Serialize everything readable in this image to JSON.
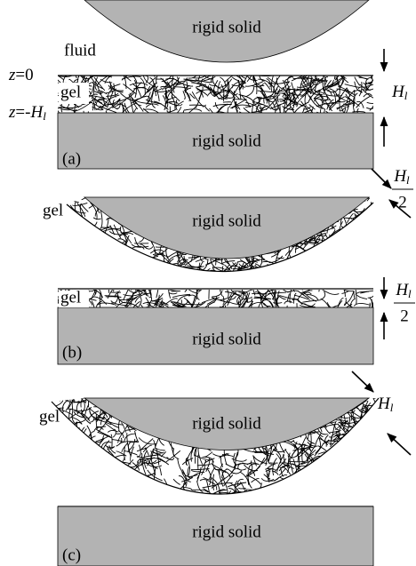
{
  "panel_a": {
    "top_solid": "rigid solid",
    "fluid": "fluid",
    "z_top": {
      "var": "z",
      "rest": "=0"
    },
    "z_bottom": {
      "var": "z",
      "op": "=-",
      "H": "H",
      "sub": "l"
    },
    "gel": "gel",
    "thickness": {
      "main": "H",
      "sub": "l"
    },
    "bottom_solid": "rigid solid",
    "label": "(a)"
  },
  "panel_b": {
    "curved_solid": "rigid solid",
    "curved_gel": "gel",
    "curved_thickness": {
      "main": "H",
      "sub": "l",
      "denominator": "2"
    },
    "flat_gel": "gel",
    "flat_thickness": {
      "main": "H",
      "sub": "l",
      "denominator": "2"
    },
    "flat_solid": "rigid solid",
    "label": "(b)"
  },
  "panel_c": {
    "curved_solid": "rigid solid",
    "gel": "gel",
    "thickness": {
      "main": "H",
      "sub": "l"
    },
    "bottom_solid": "rigid solid",
    "label": "(c)"
  }
}
